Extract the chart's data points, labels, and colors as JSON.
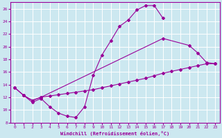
{
  "xlabel": "Windchill (Refroidissement éolien,°C)",
  "background_color": "#cce8f0",
  "grid_color": "#ffffff",
  "line_color": "#990099",
  "xlim": [
    -0.5,
    23.5
  ],
  "ylim": [
    8,
    27
  ],
  "xticks": [
    0,
    1,
    2,
    3,
    4,
    5,
    6,
    7,
    8,
    9,
    10,
    11,
    12,
    13,
    14,
    15,
    16,
    17,
    18,
    19,
    20,
    21,
    22,
    23
  ],
  "yticks": [
    8,
    10,
    12,
    14,
    16,
    18,
    20,
    22,
    24,
    26
  ],
  "line1_x": [
    0,
    1,
    2,
    3,
    4,
    5,
    6,
    7,
    8,
    9,
    10,
    11,
    12,
    13,
    14,
    15,
    16,
    17
  ],
  "line1_y": [
    13.5,
    12.3,
    11.2,
    11.8,
    10.5,
    9.5,
    9.0,
    8.8,
    10.5,
    15.5,
    18.7,
    20.9,
    23.2,
    24.2,
    25.8,
    26.5,
    26.5,
    24.5
  ],
  "line2_x": [
    0,
    1,
    2,
    3,
    17,
    20,
    21,
    22,
    23
  ],
  "line2_y": [
    13.5,
    12.3,
    11.5,
    12.0,
    21.3,
    20.2,
    19.0,
    17.5,
    17.3
  ],
  "line3_x": [
    1,
    2,
    3,
    4,
    5,
    6,
    7,
    8,
    9,
    10,
    11,
    12,
    13,
    14,
    15,
    16,
    17,
    18,
    19,
    20,
    21,
    22,
    23
  ],
  "line3_y": [
    12.3,
    11.5,
    12.0,
    12.2,
    12.4,
    12.6,
    12.8,
    13.0,
    13.2,
    13.5,
    13.8,
    14.1,
    14.4,
    14.7,
    15.0,
    15.4,
    15.8,
    16.1,
    16.4,
    16.7,
    17.0,
    17.3,
    17.3
  ]
}
